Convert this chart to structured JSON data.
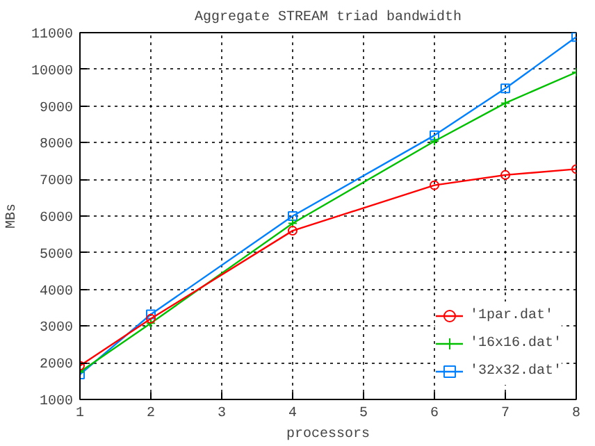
{
  "chart_data": {
    "type": "line",
    "title": "Aggregate STREAM triad bandwidth",
    "xlabel": "processors",
    "ylabel": "MBs",
    "x": [
      1,
      2,
      4,
      6,
      7,
      8
    ],
    "series": [
      {
        "name": "'1par.dat'",
        "color": "#ff0000",
        "marker": "circle",
        "values": [
          1920,
          3200,
          5600,
          6840,
          7120,
          7280
        ]
      },
      {
        "name": "'16x16.dat'",
        "color": "#00c000",
        "marker": "cross",
        "values": [
          1750,
          3080,
          5800,
          8040,
          9080,
          9920
        ]
      },
      {
        "name": "'32x32.dat'",
        "color": "#0080ff",
        "marker": "square",
        "values": [
          1680,
          3320,
          6000,
          8200,
          9480,
          10880
        ]
      }
    ],
    "xlim": [
      1,
      8
    ],
    "xticks": [
      1,
      2,
      3,
      4,
      5,
      6,
      7,
      8
    ],
    "ylim": [
      1000,
      11000
    ],
    "yticks": [
      1000,
      2000,
      3000,
      4000,
      5000,
      6000,
      7000,
      8000,
      9000,
      10000,
      11000
    ],
    "grid": true,
    "legend": "bottom right",
    "line_style": "solid"
  }
}
